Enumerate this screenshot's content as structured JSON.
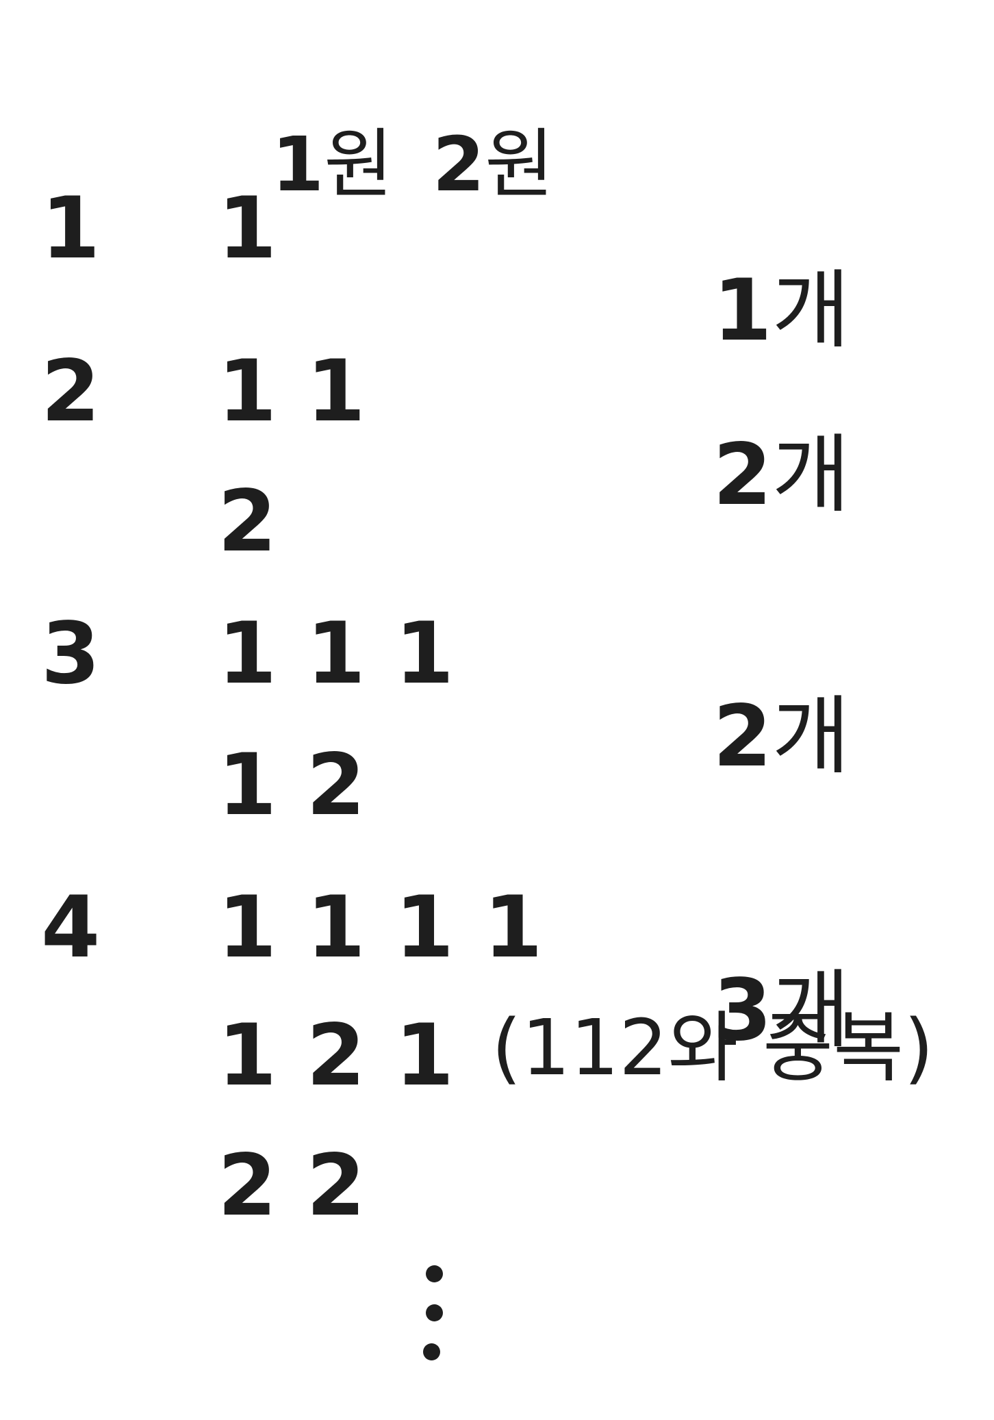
{
  "header": {
    "coin1_value": "1",
    "coin1_unit": "원",
    "coin2_value": "2",
    "coin2_unit": "원"
  },
  "rows": [
    {
      "amount": "1",
      "combos": [
        "1"
      ],
      "count_value": "1",
      "count_unit": "개"
    },
    {
      "amount": "2",
      "combos": [
        "1 1",
        "2"
      ],
      "count_value": "2",
      "count_unit": "개"
    },
    {
      "amount": "3",
      "combos": [
        "1 1 1",
        "1 2"
      ],
      "count_value": "2",
      "count_unit": "개"
    },
    {
      "amount": "4",
      "combos": [
        "1 1 1 1",
        "1 2 1",
        "2 2"
      ],
      "count_value": "3",
      "count_unit": "개",
      "note": "(112와 중복)"
    }
  ]
}
